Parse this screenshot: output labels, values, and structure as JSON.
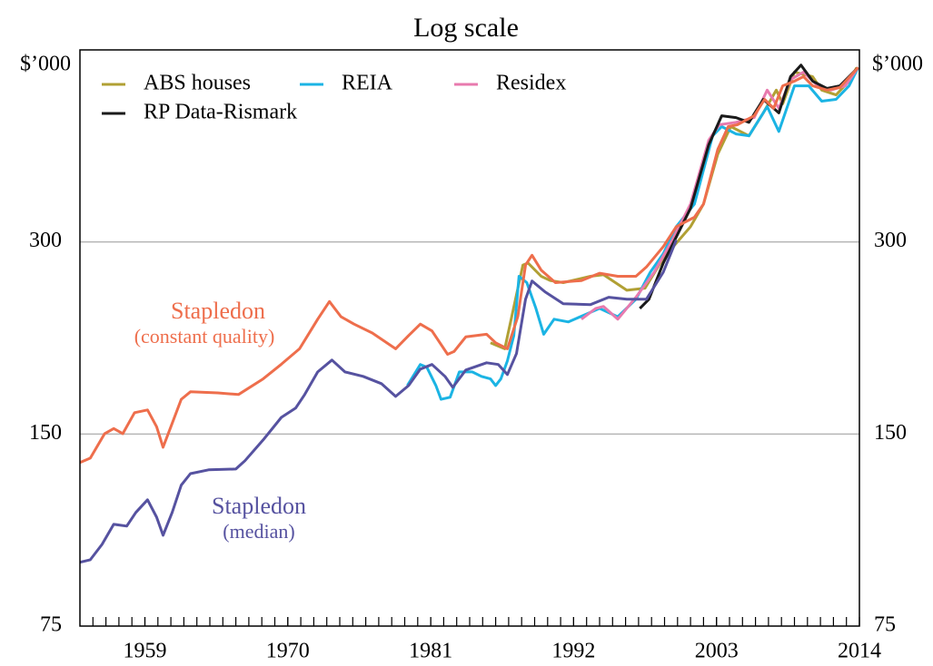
{
  "chart_data": {
    "type": "line",
    "title": "Log scale",
    "y_unit_left": "$’000",
    "y_unit_right": "$’000",
    "log_scale": true,
    "grid": true,
    "legend": "upper left",
    "xlim": [
      1954,
      2014
    ],
    "xticks": [
      1959,
      1970,
      1981,
      1992,
      2003,
      2014
    ],
    "xminorticks": [
      1955,
      1956,
      1957,
      1958,
      1959,
      1960,
      1961,
      1962,
      1963,
      1964,
      1965,
      1966,
      1967,
      1968,
      1969,
      1970,
      1971,
      1972,
      1973,
      1974,
      1975,
      1976,
      1977,
      1978,
      1979,
      1980,
      1981,
      1982,
      1983,
      1984,
      1985,
      1986,
      1987,
      1988,
      1989,
      1990,
      1991,
      1992,
      1993,
      1994,
      1995,
      1996,
      1997,
      1998,
      1999,
      2000,
      2001,
      2002,
      2003,
      2004,
      2005,
      2006,
      2007,
      2008,
      2009,
      2010,
      2011,
      2012,
      2013
    ],
    "ylim": [
      75,
      600
    ],
    "yticks": [
      75,
      150,
      300
    ],
    "annotations": [
      {
        "text": "Stapledon",
        "color": "#ee6e4c"
      },
      {
        "text": "(constant quality)",
        "color": "#ee6e4c"
      },
      {
        "text": "Stapledon",
        "color": "#5652a0"
      },
      {
        "text": "(median)",
        "color": "#5652a0"
      }
    ],
    "series": [
      {
        "name": "ABS houses",
        "color": "#b1a034",
        "in_legend": true,
        "x": [
          1985.6,
          1986.7,
          1988.1,
          1988.5,
          1989.5,
          1990.2,
          1991.2,
          1993.3,
          1994.3,
          1996.1,
          1997.5,
          1998.9,
          2001,
          2002,
          2003.1,
          2004.1,
          2005.5,
          2006.6,
          2007.6,
          2008.1,
          2009,
          2010.4,
          2011.1,
          2012.2,
          2013.2,
          2013.8
        ],
        "values": [
          208.5,
          204,
          276,
          278,
          265,
          261,
          259,
          265,
          266.6,
          252,
          253.9,
          282.8,
          317,
          344,
          412,
          455,
          440,
          478,
          519,
          494,
          554,
          545,
          519,
          510,
          536,
          563
        ]
      },
      {
        "name": "REIA",
        "color": "#1bb4e4",
        "in_legend": true,
        "x": [
          1979.2,
          1980.2,
          1980.7,
          1981.4,
          1981.8,
          1982.5,
          1983.2,
          1984.2,
          1984.9,
          1985.6,
          1986,
          1986.4,
          1986.9,
          1987.4,
          1987.8,
          1988.4,
          1989.1,
          1989.7,
          1990.5,
          1991.6,
          1992.5,
          1994,
          1995.4,
          1996.8,
          1997.9,
          1998.9,
          1999.9,
          2001.3,
          2002.7,
          2003.4,
          2004.5,
          2005.5,
          2006.9,
          2007.8,
          2009,
          2010.1,
          2011.1,
          2012.2,
          2013.2,
          2013.9
        ],
        "values": [
          178.7,
          192.8,
          190.9,
          178.7,
          170,
          171.3,
          187.7,
          187.7,
          184.7,
          183,
          178.7,
          183,
          195.3,
          214,
          265,
          259,
          236,
          215,
          227,
          224.8,
          229,
          236,
          229,
          244,
          269,
          287.6,
          317,
          344,
          440,
          455,
          443,
          440,
          489,
          447,
          527,
          527,
          498.6,
          502,
          527,
          563
        ]
      },
      {
        "name": "Residex",
        "color": "#e87aae",
        "in_legend": true,
        "x": [
          1992.6,
          1993.7,
          1994.3,
          1995.4,
          1996.8,
          1998.2,
          1999.6,
          2001,
          2002.4,
          2003.2,
          2004.5,
          2005.9,
          2006.9,
          2007.8,
          2008.7,
          2009.7,
          2010.8,
          2011.8,
          2012.9,
          2013.9
        ],
        "values": [
          227,
          236,
          237.7,
          227,
          245.7,
          269,
          302,
          344,
          433,
          458,
          462,
          470,
          519,
          486,
          539,
          554,
          527,
          519,
          527,
          563
        ]
      },
      {
        "name": "RP Data-Rismark",
        "color": "#1a1a1a",
        "in_legend": true,
        "x": [
          1997.1,
          1997.8,
          1998.9,
          2001,
          2002.4,
          2003.4,
          2004.5,
          2005.5,
          2006.6,
          2007.8,
          2008.7,
          2009.5,
          2010.4,
          2011.5,
          2012.5,
          2013.9
        ],
        "values": [
          236,
          244,
          278,
          338.7,
          426,
          473,
          470,
          462,
          502,
          478,
          545,
          568,
          536,
          522,
          527,
          563
        ]
      },
      {
        "name": "Stapledon",
        "color": "#ee6e4c",
        "in_legend": false,
        "x": [
          1954,
          1954.8,
          1955.9,
          1956.6,
          1957.3,
          1958.2,
          1959.2,
          1959.9,
          1960.4,
          1961,
          1961.8,
          1962.5,
          1964.6,
          1966.2,
          1968.1,
          1969.5,
          1970.9,
          1972.3,
          1973.2,
          1974.1,
          1975.1,
          1976.5,
          1978.3,
          1979.3,
          1980.2,
          1981.1,
          1982.3,
          1982.8,
          1983.7,
          1985.3,
          1986,
          1986.9,
          1987.7,
          1988.3,
          1988.8,
          1989.5,
          1990.6,
          1992.6,
          1994,
          1995.4,
          1996.8,
          1997.6,
          1998.9,
          1999.9,
          2001.3,
          2002,
          2003.1,
          2003.9,
          2004.6,
          2005.9,
          2006.7,
          2007.4,
          2008.1,
          2009,
          2009.7,
          2010.4,
          2011.5,
          2012.5,
          2013.9
        ],
        "values": [
          135.3,
          137.5,
          150.2,
          153,
          150.2,
          162,
          163.6,
          154,
          143,
          154,
          170,
          174.7,
          174,
          173,
          183,
          193,
          204,
          227,
          242,
          229,
          223,
          216,
          204,
          214,
          223,
          217.6,
          200,
          202,
          213,
          215,
          208.5,
          204,
          229,
          276,
          286,
          271,
          259,
          261,
          268,
          265,
          265,
          274,
          295,
          317,
          328,
          344,
          419,
          455,
          458,
          473,
          502,
          486,
          527,
          536,
          545,
          527,
          519,
          524,
          563
        ]
      },
      {
        "name": "Stapledon",
        "color": "#5652a0",
        "in_legend": false,
        "x": [
          1954,
          1954.8,
          1955.7,
          1956.6,
          1957.6,
          1958.3,
          1959.2,
          1959.9,
          1960.4,
          1961.1,
          1961.8,
          1962.5,
          1963.9,
          1966,
          1966.7,
          1968.1,
          1969.5,
          1970.6,
          1971.3,
          1972.3,
          1973.4,
          1974.4,
          1975.8,
          1977.2,
          1978.3,
          1979.3,
          1980.2,
          1981.1,
          1982.1,
          1982.7,
          1983.7,
          1985.3,
          1986.2,
          1986.9,
          1987.6,
          1988.3,
          1988.8,
          1989.8,
          1991.2,
          1993.3,
          1994.7,
          1996.1,
          1997.6,
          1998.9,
          1999.9
        ],
        "values": [
          94.4,
          95.3,
          100.7,
          108.3,
          107.6,
          113,
          118.3,
          111.1,
          104.1,
          113,
          124.7,
          130,
          131.8,
          132.2,
          136.2,
          146.8,
          159.3,
          164.7,
          173,
          187.7,
          195.9,
          187.7,
          184.7,
          179.9,
          171.8,
          178.7,
          189.6,
          192.8,
          184.7,
          177.5,
          189,
          194,
          192.8,
          185.9,
          200.5,
          244,
          260.6,
          250.6,
          240,
          239.3,
          245.7,
          244,
          244,
          269,
          302
        ]
      }
    ]
  }
}
